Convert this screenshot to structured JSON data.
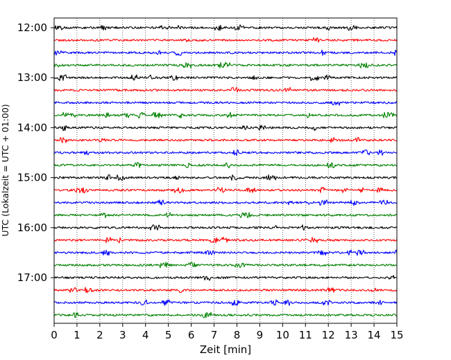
{
  "chart_data": {
    "type": "line",
    "title": "",
    "xlabel": "Zeit  [min]",
    "ylabel": "UTC (Lokalzeit = UTC + 01:00)",
    "xlim": [
      0,
      15
    ],
    "x_ticks": [
      "0",
      "1",
      "2",
      "3",
      "4",
      "5",
      "6",
      "7",
      "8",
      "9",
      "10",
      "11",
      "12",
      "13",
      "14",
      "15"
    ],
    "y_tick_labels": [
      "12:00",
      "13:00",
      "14:00",
      "15:00",
      "16:00",
      "17:00"
    ],
    "grid": "vertical dotted lines at each minute",
    "row_start_times": [
      "12:00",
      "12:15",
      "12:30",
      "12:45",
      "13:00",
      "13:15",
      "13:30",
      "13:45",
      "14:00",
      "14:15",
      "14:30",
      "14:45",
      "15:00",
      "15:15",
      "15:30",
      "15:45",
      "16:00",
      "16:15",
      "16:30",
      "16:45",
      "17:00",
      "17:15",
      "17:30",
      "17:45"
    ],
    "trace_colors": [
      "#000000",
      "#ff0000",
      "#0000ff",
      "#008000"
    ],
    "trace_minutes_per_row": 15
  }
}
